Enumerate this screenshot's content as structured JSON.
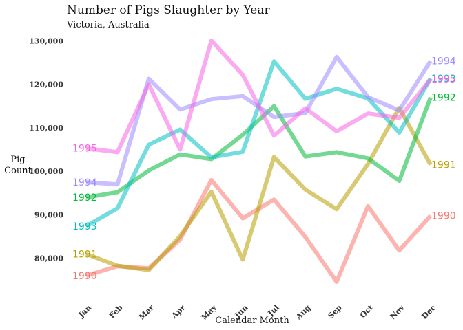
{
  "chart_data": {
    "type": "line",
    "title": "Number of Pigs Slaughter by Year",
    "subtitle": "Victoria, Australia",
    "xlabel": "Calendar Month",
    "ylabel": "Pig Count",
    "categories": [
      "Jan",
      "Feb",
      "Mar",
      "Apr",
      "May",
      "Jun",
      "Jul",
      "Aug",
      "Sep",
      "Oct",
      "Nov",
      "Dec"
    ],
    "ylim": [
      73000,
      131500
    ],
    "yticks": [
      80000,
      90000,
      100000,
      110000,
      120000,
      130000
    ],
    "ytick_labels": [
      "80,000",
      "90,000",
      "100,000",
      "110,000",
      "120,000",
      "130,000"
    ],
    "grid": false,
    "legend": "direct labels at line ends",
    "series": [
      {
        "name": "1990",
        "color": "#F8766D",
        "values": [
          76000,
          78200,
          77700,
          84300,
          98000,
          89200,
          93500,
          84900,
          74600,
          92000,
          81800,
          89800
        ]
      },
      {
        "name": "1991",
        "color": "#B79F00",
        "values": [
          81000,
          78300,
          77300,
          85100,
          95300,
          79700,
          103300,
          95800,
          91300,
          101700,
          114600,
          101500
        ]
      },
      {
        "name": "1992",
        "color": "#00BA38",
        "values": [
          94000,
          95200,
          100200,
          103900,
          102800,
          108400,
          115000,
          103400,
          104400,
          103000,
          97800,
          117000
        ]
      },
      {
        "name": "1993",
        "color": "#00BFC4",
        "values": [
          87400,
          91500,
          106100,
          109600,
          103200,
          104500,
          125300,
          116700,
          119000,
          116800,
          108900,
          121400
        ]
      },
      {
        "name": "1994",
        "color": "#9D8AFF",
        "values": [
          97500,
          97000,
          121300,
          114200,
          116600,
          117300,
          112500,
          113400,
          126300,
          117100,
          114000,
          125400
        ]
      },
      {
        "name": "1995",
        "color": "#F564E3",
        "values": [
          105300,
          104400,
          120000,
          105000,
          130100,
          122200,
          108200,
          114500,
          109200,
          113300,
          112300,
          121200
        ]
      }
    ],
    "end_labels": [
      {
        "series": "1990",
        "value": 89800
      },
      {
        "series": "1991",
        "value": 101500
      },
      {
        "series": "1992",
        "value": 117000
      },
      {
        "series": "1993",
        "value": 121400
      },
      {
        "series": "1994",
        "value": 125400
      },
      {
        "series": "1995",
        "value": 121200
      }
    ],
    "start_labels": [
      {
        "series": "1995",
        "value": 105300
      },
      {
        "series": "1994",
        "value": 97500
      },
      {
        "series": "1992",
        "value": 94000
      },
      {
        "series": "1993",
        "value": 87400
      },
      {
        "series": "1991",
        "value": 81000
      },
      {
        "series": "1990",
        "value": 76000
      }
    ]
  }
}
